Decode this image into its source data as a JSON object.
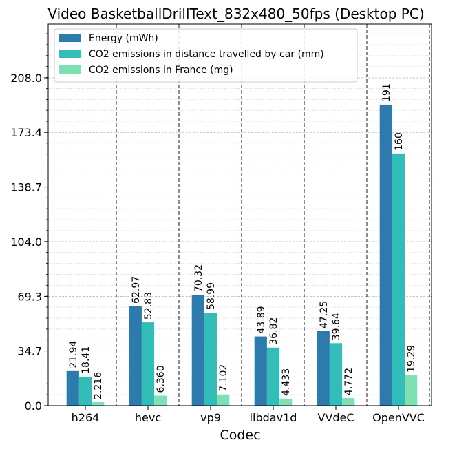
{
  "chart_data": {
    "type": "bar",
    "title": "Video BasketballDrillText_832x480_50fps (Desktop PC)",
    "xlabel": "Codec",
    "ylabel": "",
    "categories": [
      "h264",
      "hevc",
      "vp9",
      "libdav1d",
      "VVdeC",
      "OpenVVC"
    ],
    "series": [
      {
        "name": "Energy (mWh)",
        "color": "#2c7bac",
        "values": [
          21.94,
          62.97,
          70.32,
          43.89,
          47.25,
          191
        ],
        "labels": [
          "21.94",
          "62.97",
          "70.32",
          "43.89",
          "47.25",
          "191"
        ]
      },
      {
        "name": "CO2 emissions in distance travelled by car (mm)",
        "color": "#33bdb8",
        "values": [
          18.41,
          52.83,
          58.99,
          36.82,
          39.64,
          160
        ],
        "labels": [
          "18.41",
          "52.83",
          "58.99",
          "36.82",
          "39.64",
          "160"
        ]
      },
      {
        "name": "CO2 emissions in France (mg)",
        "color": "#7fe0b4",
        "values": [
          2.216,
          6.36,
          7.102,
          4.433,
          4.772,
          19.29
        ],
        "labels": [
          "2.216",
          "6.360",
          "7.102",
          "4.433",
          "4.772",
          "19.29"
        ]
      }
    ],
    "yticks": [
      0.0,
      34.7,
      69.3,
      104.0,
      138.7,
      173.4,
      208.0
    ],
    "ytick_labels": [
      "0.0",
      "34.7",
      "69.3",
      "104.0",
      "138.7",
      "173.4",
      "208.0"
    ],
    "ylim": [
      0,
      208.0
    ],
    "grid": true,
    "legend_position": "top-left"
  }
}
